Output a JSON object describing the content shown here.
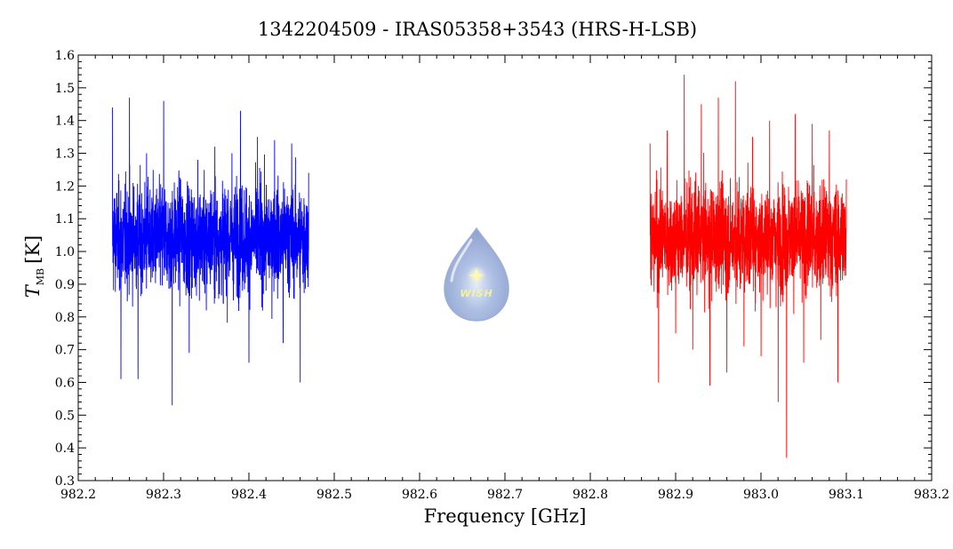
{
  "chart_data": {
    "type": "line",
    "title": "1342204509 - IRAS05358+3543 (HRS-H-LSB)",
    "xlabel": "Frequency [GHz]",
    "ylabel_main": "T",
    "ylabel_sub": "MB",
    "ylabel_unit": "[K]",
    "xlim": [
      982.2,
      983.2
    ],
    "ylim": [
      0.3,
      1.6
    ],
    "xticks": [
      "982.2",
      "982.3",
      "982.4",
      "982.5",
      "982.6",
      "982.7",
      "982.8",
      "982.9",
      "983.0",
      "983.1",
      "983.2"
    ],
    "yticks": [
      "0.3",
      "0.4",
      "0.5",
      "0.6",
      "0.7",
      "0.8",
      "0.9",
      "1.0",
      "1.1",
      "1.2",
      "1.3",
      "1.4",
      "1.5",
      "1.6"
    ],
    "grid": false,
    "series": [
      {
        "color": "#0000ff",
        "x_range": [
          982.24,
          982.47
        ],
        "x": [
          982.24,
          982.25,
          982.26,
          982.27,
          982.28,
          982.29,
          982.3,
          982.31,
          982.32,
          982.33,
          982.34,
          982.35,
          982.36,
          982.37,
          982.38,
          982.39,
          982.4,
          982.41,
          982.42,
          982.43,
          982.44,
          982.45,
          982.46,
          982.47
        ],
        "y": [
          1.44,
          0.61,
          1.47,
          0.61,
          1.3,
          0.95,
          1.46,
          0.53,
          1.22,
          0.69,
          1.28,
          0.82,
          1.32,
          0.84,
          1.3,
          1.43,
          0.66,
          1.35,
          0.88,
          1.34,
          0.72,
          1.33,
          0.6,
          1.24
        ]
      },
      {
        "color": "#ff0000",
        "x_range": [
          982.87,
          983.1
        ],
        "x": [
          982.87,
          982.88,
          982.89,
          982.9,
          982.91,
          982.92,
          982.93,
          982.94,
          982.95,
          982.96,
          982.97,
          982.98,
          982.99,
          983.0,
          983.01,
          983.02,
          983.03,
          983.04,
          983.05,
          983.06,
          983.07,
          983.08,
          983.09,
          983.1
        ],
        "y": [
          1.33,
          0.6,
          1.37,
          0.75,
          1.54,
          0.7,
          1.45,
          0.59,
          1.47,
          0.63,
          1.52,
          0.71,
          1.35,
          0.68,
          1.4,
          0.54,
          0.37,
          1.42,
          0.66,
          1.39,
          0.73,
          1.37,
          0.6,
          1.22
        ]
      }
    ]
  },
  "logo": {
    "text": "WISH",
    "icon": "wish-waterdrop-logo-icon"
  }
}
